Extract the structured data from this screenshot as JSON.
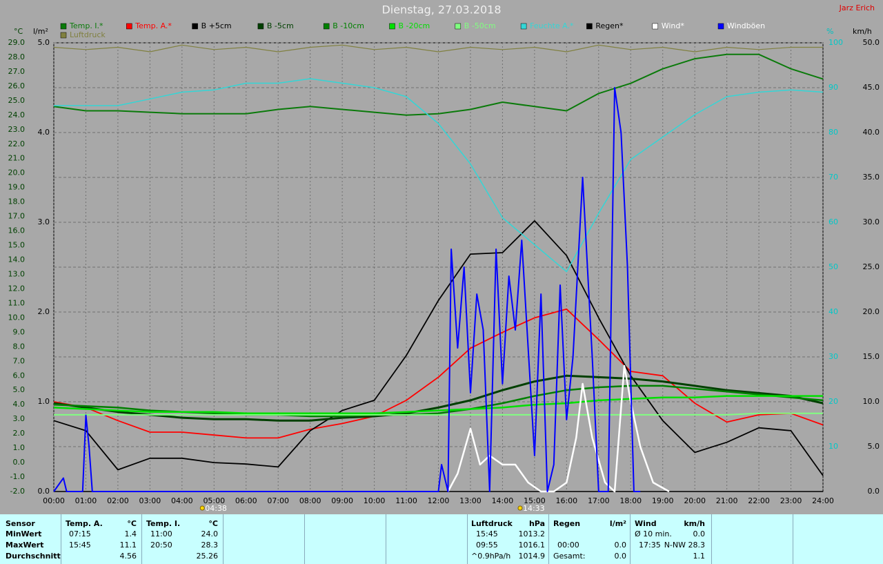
{
  "signature": "Jarz Erich",
  "chart_data": {
    "type": "line",
    "title": "Dienstag, 27.03.2018",
    "axis_units": {
      "y": "°C",
      "y3": "l/m²",
      "y2": "%",
      "y4": "km/h"
    },
    "x": [
      0,
      1,
      2,
      3,
      4,
      5,
      6,
      7,
      8,
      9,
      10,
      11,
      12,
      13,
      14,
      15,
      16,
      17,
      18,
      19,
      20,
      21,
      22,
      23,
      24
    ],
    "xlim": [
      0,
      24
    ],
    "xticks": [
      {
        "value": 0,
        "label": "00:00"
      },
      {
        "value": 1,
        "label": "01:00"
      },
      {
        "value": 2,
        "label": "02:00"
      },
      {
        "value": 3,
        "label": "03:00"
      },
      {
        "value": 4,
        "label": "04:00"
      },
      {
        "value": 5,
        "label": "05:00"
      },
      {
        "value": 6,
        "label": "06:00"
      },
      {
        "value": 7,
        "label": "07:00"
      },
      {
        "value": 8,
        "label": "08:00"
      },
      {
        "value": 9,
        "label": "09:00"
      },
      {
        "value": 10,
        "label": "10:00"
      },
      {
        "value": 11,
        "label": "11:00"
      },
      {
        "value": 12,
        "label": "12:00"
      },
      {
        "value": 13,
        "label": "13:00"
      },
      {
        "value": 14,
        "label": "14:00"
      },
      {
        "value": 15,
        "label": "15:00"
      },
      {
        "value": 16,
        "label": "16:00"
      },
      {
        "value": 17,
        "label": "17:00"
      },
      {
        "value": 18,
        "label": "18:00"
      },
      {
        "value": 19,
        "label": "19:00"
      },
      {
        "value": 20,
        "label": "20:00"
      },
      {
        "value": 21,
        "label": "21:00"
      },
      {
        "value": 22,
        "label": "22:00"
      },
      {
        "value": 23,
        "label": "23:00"
      },
      {
        "value": 24,
        "label": "24:00"
      }
    ],
    "ylim": [
      -2,
      29
    ],
    "yticks": [
      {
        "value": -2,
        "label": "-2.0"
      },
      {
        "value": -1,
        "label": "-1.0"
      },
      {
        "value": 0,
        "label": "0.0"
      },
      {
        "value": 1,
        "label": "1.0"
      },
      {
        "value": 2,
        "label": "2.0"
      },
      {
        "value": 3,
        "label": "3.0"
      },
      {
        "value": 4,
        "label": "4.0"
      },
      {
        "value": 5,
        "label": "5.0"
      },
      {
        "value": 6,
        "label": "6.0"
      },
      {
        "value": 7,
        "label": "7.0"
      },
      {
        "value": 8,
        "label": "8.0"
      },
      {
        "value": 9,
        "label": "9.0"
      },
      {
        "value": 10,
        "label": "10.0"
      },
      {
        "value": 11,
        "label": "11.0"
      },
      {
        "value": 12,
        "label": "12.0"
      },
      {
        "value": 13,
        "label": "13.0"
      },
      {
        "value": 14,
        "label": "14.0"
      },
      {
        "value": 15,
        "label": "15.0"
      },
      {
        "value": 16,
        "label": "16.0"
      },
      {
        "value": 17,
        "label": "17.0"
      },
      {
        "value": 18,
        "label": "18.0"
      },
      {
        "value": 19,
        "label": "19.0"
      },
      {
        "value": 20,
        "label": "20.0"
      },
      {
        "value": 21,
        "label": "21.0"
      },
      {
        "value": 22,
        "label": "22.0"
      },
      {
        "value": 23,
        "label": "23.0"
      },
      {
        "value": 24,
        "label": "24.0"
      },
      {
        "value": 25,
        "label": "25.0"
      },
      {
        "value": 26,
        "label": "26.0"
      },
      {
        "value": 27,
        "label": "27.0"
      },
      {
        "value": 28,
        "label": "28.0"
      },
      {
        "value": 29,
        "label": "29.0"
      }
    ],
    "y3lim": [
      0,
      5
    ],
    "y3ticks": [
      {
        "value": 0,
        "label": "0.0"
      },
      {
        "value": 1,
        "label": "1.0"
      },
      {
        "value": 2,
        "label": "2.0"
      },
      {
        "value": 3,
        "label": "3.0"
      },
      {
        "value": 4,
        "label": "4.0"
      },
      {
        "value": 5,
        "label": "5.0"
      }
    ],
    "y2lim": [
      0,
      100
    ],
    "y2ticks": [
      10,
      20,
      30,
      40,
      50,
      60,
      70,
      80,
      90,
      100
    ],
    "y4lim": [
      0,
      50
    ],
    "y4ticks": [
      {
        "value": 0,
        "label": "0.0"
      },
      {
        "value": 5,
        "label": "5.0"
      },
      {
        "value": 10,
        "label": "10.0"
      },
      {
        "value": 15,
        "label": "15.0"
      },
      {
        "value": 20,
        "label": "20.0"
      },
      {
        "value": 25,
        "label": "25.0"
      },
      {
        "value": 30,
        "label": "30.0"
      },
      {
        "value": 35,
        "label": "35.0"
      },
      {
        "value": 40,
        "label": "40.0"
      },
      {
        "value": 45,
        "label": "45.0"
      },
      {
        "value": 50,
        "label": "50.0"
      }
    ],
    "grid": true,
    "series": [
      {
        "name": "Temp. I.*",
        "color": "#0a7a0a",
        "axis": "y",
        "values": [
          24.6,
          24.3,
          24.3,
          24.2,
          24.1,
          24.1,
          24.1,
          24.4,
          24.6,
          24.4,
          24.2,
          24.0,
          24.1,
          24.4,
          24.9,
          24.6,
          24.3,
          25.5,
          26.2,
          27.2,
          27.9,
          28.2,
          28.2,
          27.2,
          26.5
        ]
      },
      {
        "name": "Temp. A.*",
        "color": "#ff0000",
        "axis": "y",
        "values": [
          4.2,
          3.8,
          2.9,
          2.1,
          2.1,
          1.9,
          1.7,
          1.7,
          2.3,
          2.7,
          3.2,
          4.3,
          5.9,
          7.9,
          9.0,
          10.0,
          10.6,
          8.5,
          6.3,
          6.0,
          4.1,
          2.8,
          3.3,
          3.4,
          2.6
        ]
      },
      {
        "name": "B +5cm",
        "color": "#000000",
        "axis": "y",
        "values": [
          2.9,
          2.2,
          -0.5,
          0.3,
          0.3,
          0.0,
          -0.1,
          -0.3,
          2.2,
          3.6,
          4.3,
          7.4,
          11.2,
          14.4,
          14.5,
          16.7,
          14.3,
          10.0,
          6.0,
          2.9,
          0.7,
          1.4,
          2.4,
          2.2,
          -0.9
        ]
      },
      {
        "name": "B -5cm",
        "color": "#004000",
        "axis": "y",
        "values": [
          4.1,
          3.8,
          3.5,
          3.3,
          3.1,
          3.0,
          3.0,
          2.9,
          2.9,
          3.1,
          3.2,
          3.4,
          3.8,
          4.3,
          5.0,
          5.6,
          6.0,
          5.9,
          5.8,
          5.6,
          5.3,
          5.0,
          4.8,
          4.6,
          4.1
        ]
      },
      {
        "name": "B -10cm",
        "color": "#008000",
        "axis": "y",
        "values": [
          4.0,
          3.9,
          3.8,
          3.6,
          3.5,
          3.4,
          3.3,
          3.3,
          3.2,
          3.2,
          3.3,
          3.3,
          3.4,
          3.7,
          4.1,
          4.6,
          5.0,
          5.2,
          5.3,
          5.3,
          5.1,
          4.9,
          4.7,
          4.5,
          4.3
        ]
      },
      {
        "name": "B -20cm",
        "color": "#00e000",
        "axis": "y",
        "values": [
          3.8,
          3.7,
          3.6,
          3.5,
          3.5,
          3.5,
          3.4,
          3.4,
          3.4,
          3.4,
          3.4,
          3.5,
          3.6,
          3.7,
          3.8,
          4.0,
          4.1,
          4.3,
          4.4,
          4.5,
          4.5,
          4.6,
          4.6,
          4.6,
          4.6
        ]
      },
      {
        "name": "B -50cm",
        "color": "#80ff80",
        "axis": "y",
        "values": [
          3.3,
          3.3,
          3.3,
          3.3,
          3.3,
          3.3,
          3.3,
          3.3,
          3.3,
          3.3,
          3.3,
          3.3,
          3.3,
          3.3,
          3.3,
          3.3,
          3.3,
          3.3,
          3.3,
          3.3,
          3.3,
          3.3,
          3.4,
          3.4,
          3.4
        ]
      },
      {
        "name": "Feuchte A.*",
        "color": "#33d6d6",
        "axis": "y2",
        "values": [
          86,
          86,
          86,
          87.5,
          89,
          89.5,
          91,
          91,
          92,
          91,
          90,
          88,
          82,
          73,
          61,
          55,
          49,
          62,
          74,
          79,
          84,
          88,
          89,
          89.5,
          89
        ]
      },
      {
        "name": "Regen*",
        "color": "#000000",
        "axis": "y3",
        "values": [
          0,
          0,
          0,
          0,
          0,
          0,
          0,
          0,
          0,
          0,
          0,
          0,
          0,
          0,
          0,
          0,
          0,
          0,
          0,
          0,
          0,
          0,
          0,
          0,
          0
        ]
      },
      {
        "name": "Wind*",
        "color": "#ffffff",
        "axis": "y4",
        "x": [
          12.3,
          12.6,
          13.0,
          13.3,
          13.6,
          14.0,
          14.4,
          14.8,
          15.2,
          15.6,
          16.0,
          16.3,
          16.5,
          16.8,
          17.2,
          17.5,
          17.8,
          18.0,
          18.3,
          18.7,
          19.2
        ],
        "values": [
          0,
          2,
          7,
          3,
          4,
          3,
          3,
          1,
          0,
          0,
          1,
          6,
          12,
          6,
          1,
          0,
          14,
          10,
          5,
          1,
          0
        ]
      },
      {
        "name": "Windböen",
        "color": "#0000ff",
        "axis": "y4",
        "x": [
          0,
          0.3,
          0.4,
          0.9,
          1.0,
          1.1,
          1.2,
          12.0,
          12.1,
          12.3,
          12.4,
          12.6,
          12.8,
          13.0,
          13.2,
          13.4,
          13.6,
          13.8,
          14.0,
          14.2,
          14.4,
          14.6,
          14.8,
          15.0,
          15.2,
          15.4,
          15.6,
          15.8,
          16.0,
          16.2,
          16.5,
          16.8,
          17.0,
          17.3,
          17.5,
          17.7,
          17.9,
          18.1,
          18.3
        ],
        "values": [
          0,
          1.5,
          0,
          0,
          8.5,
          5,
          0,
          0,
          3,
          0,
          27,
          16,
          25,
          11,
          22,
          18,
          0,
          27,
          12,
          24,
          18,
          28,
          16,
          4,
          22,
          0,
          3,
          23,
          8,
          15,
          35,
          15,
          0,
          0,
          45,
          40,
          25,
          0,
          0
        ]
      },
      {
        "name": "Luftdruck",
        "color": "#808040",
        "axis": "y2",
        "values": [
          99,
          98.5,
          99,
          98,
          99.5,
          98.5,
          99,
          98,
          99,
          99.5,
          98.5,
          99,
          98,
          99,
          98.5,
          99,
          98,
          99.5,
          98.5,
          99,
          98,
          99,
          98.5,
          99,
          99
        ]
      }
    ],
    "sun_events": [
      {
        "x": 4.633,
        "label": "04:38"
      },
      {
        "x": 14.55,
        "label": "14:33"
      }
    ]
  },
  "table": {
    "sensor": {
      "title": "Sensor",
      "min": "MinWert",
      "max": "MaxWert",
      "avg": "Durchschnitt"
    },
    "temp_a": {
      "title": "Temp. A.",
      "unit": "°C",
      "min": {
        "time": "07:15",
        "value": "1.4"
      },
      "max": {
        "time": "15:45",
        "value": "11.1"
      },
      "avg": {
        "value": "4.56"
      }
    },
    "temp_i": {
      "title": "Temp. I.",
      "unit": "°C",
      "min": {
        "time": "11:00",
        "value": "24.0"
      },
      "max": {
        "time": "20:50",
        "value": "28.3"
      },
      "avg": {
        "value": "25.26"
      }
    },
    "pressure": {
      "title": "Luftdruck",
      "unit": "hPa",
      "min": {
        "time": "15:45",
        "value": "1013.2"
      },
      "max": {
        "time": "09:55",
        "value": "1016.1"
      },
      "avg": {
        "time": "^0.9hPa/h",
        "value": "1014.9"
      }
    },
    "rain": {
      "title": "Regen",
      "unit": "l/m²",
      "max": {
        "time": "00:00",
        "value": "0.0"
      },
      "avg": {
        "time": "Gesamt:",
        "value": "0.0"
      }
    },
    "wind": {
      "title": "Wind",
      "unit": "km/h",
      "min": {
        "time": "Ø 10 min.",
        "value": "0.0"
      },
      "max": {
        "time": "17:35",
        "value": "N-NW 28.3"
      },
      "avg": {
        "value": "1.1"
      }
    }
  }
}
